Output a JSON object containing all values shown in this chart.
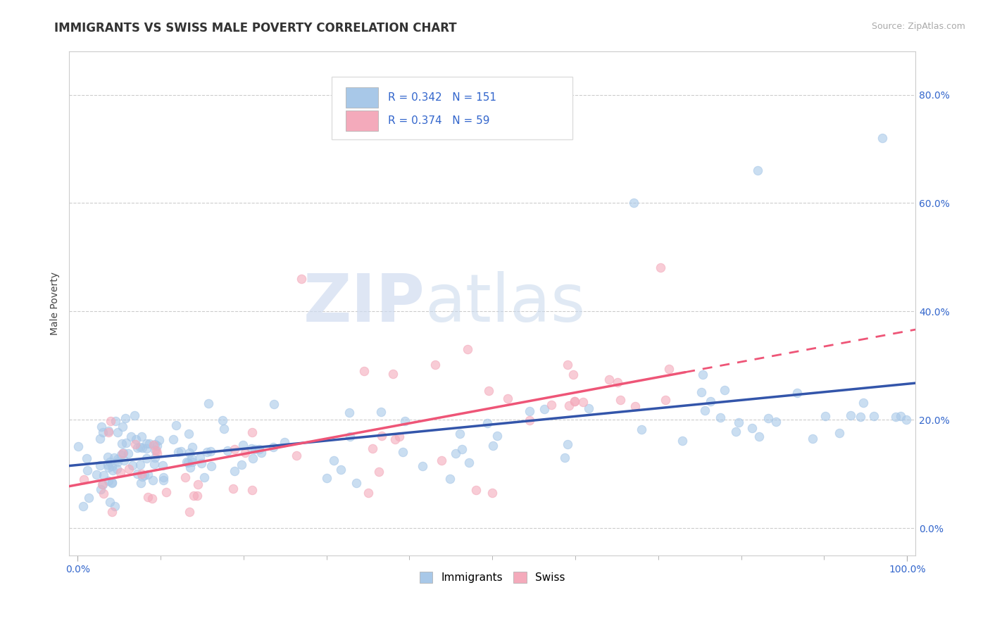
{
  "title": "IMMIGRANTS VS SWISS MALE POVERTY CORRELATION CHART",
  "source": "Source: ZipAtlas.com",
  "ylabel": "Male Poverty",
  "xlim": [
    -0.01,
    1.01
  ],
  "ylim": [
    -0.05,
    0.88
  ],
  "xtick_positions": [
    0.0,
    1.0
  ],
  "xtick_labels": [
    "0.0%",
    "100.0%"
  ],
  "ytick_values": [
    0.0,
    0.2,
    0.4,
    0.6,
    0.8
  ],
  "ytick_labels": [
    "0.0%",
    "20.0%",
    "40.0%",
    "60.0%",
    "80.0%"
  ],
  "immigrants_color": "#A8C8E8",
  "swiss_color": "#F4AABB",
  "immigrants_line_color": "#3355AA",
  "swiss_line_color": "#EE5577",
  "R_immigrants": 0.342,
  "N_immigrants": 151,
  "R_swiss": 0.374,
  "N_swiss": 59,
  "legend_text_color": "#3366CC",
  "background_color": "#FFFFFF",
  "grid_color": "#CCCCCC",
  "watermark_zip": "ZIP",
  "watermark_atlas": "atlas",
  "title_fontsize": 12,
  "axis_label_fontsize": 10,
  "tick_fontsize": 10,
  "source_fontsize": 9,
  "legend_fontsize": 11
}
